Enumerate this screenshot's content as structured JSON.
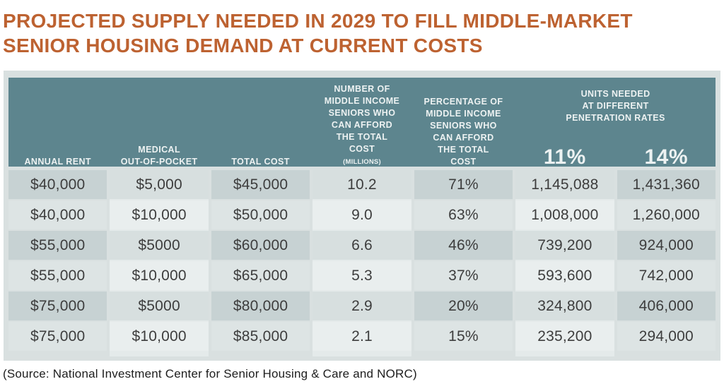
{
  "title": {
    "line1": "PROJECTED SUPPLY NEEDED IN 2029 TO FILL MIDDLE-MARKET",
    "line2": "SENIOR HOUSING DEMAND AT CURRENT COSTS"
  },
  "source": "(Source: National Investment Center for Senior Housing & Care and NORC)",
  "table": {
    "header": {
      "col1": "ANNUAL RENT",
      "col2_lines": [
        "MEDICAL",
        "OUT-OF-POCKET"
      ],
      "col3": "TOTAL COST",
      "col4_lines": [
        "NUMBER OF",
        "MIDDLE INCOME",
        "SENIORS WHO",
        "CAN AFFORD",
        "THE TOTAL"
      ],
      "col4_last_main": "COST ",
      "col4_last_small": "(MILLIONS)",
      "col5_lines": [
        "PERCENTAGE OF",
        "MIDDLE INCOME",
        "SENIORS WHO",
        "CAN AFFORD",
        "THE TOTAL",
        "COST"
      ],
      "group_lines": [
        "UNITS NEEDED",
        "AT DIFFERENT",
        "PENETRATION RATES"
      ],
      "rate1": "11%",
      "rate2": "14%"
    }
  },
  "chart_data": {
    "type": "table",
    "title": "PROJECTED SUPPLY NEEDED IN 2029 TO FILL MIDDLE-MARKET SENIOR HOUSING DEMAND AT CURRENT COSTS",
    "columns": [
      "ANNUAL RENT",
      "MEDICAL OUT-OF-POCKET",
      "TOTAL COST",
      "NUMBER OF MIDDLE INCOME SENIORS WHO CAN AFFORD THE TOTAL COST (MILLIONS)",
      "PERCENTAGE OF MIDDLE INCOME SENIORS WHO CAN AFFORD THE TOTAL COST",
      "UNITS NEEDED AT 11% PENETRATION RATE",
      "UNITS NEEDED AT 14% PENETRATION RATE"
    ],
    "rows": [
      [
        "$40,000",
        "$5,000",
        "$45,000",
        "10.2",
        "71%",
        "1,145,088",
        "1,431,360"
      ],
      [
        "$40,000",
        "$10,000",
        "$50,000",
        "9.0",
        "63%",
        "1,008,000",
        "1,260,000"
      ],
      [
        "$55,000",
        "$5000",
        "$60,000",
        "6.6",
        "46%",
        "739,200",
        "924,000"
      ],
      [
        "$55,000",
        "$10,000",
        "$65,000",
        "5.3",
        "37%",
        "593,600",
        "742,000"
      ],
      [
        "$75,000",
        "$5000",
        "$80,000",
        "2.9",
        "20%",
        "324,800",
        "406,000"
      ],
      [
        "$75,000",
        "$10,000",
        "$85,000",
        "2.1",
        "15%",
        "235,200",
        "294,000"
      ]
    ],
    "source": "(Source: National Investment Center for Senior Housing & Care and NORC)"
  },
  "colors": {
    "title_text": "#bd6231",
    "card_bg": "#d9e0e0",
    "header_bg": "#5d858e",
    "header_text": "#edf2f2",
    "row_odd": "#c7d2d3",
    "row_even": "#dde4e4",
    "row_odd_light": "#d7dfdf",
    "row_even_light": "#e9eeee",
    "col_strip": "#e4eaea",
    "cell_text": "#3d3d3d",
    "source_text": "#1d1d1d"
  }
}
